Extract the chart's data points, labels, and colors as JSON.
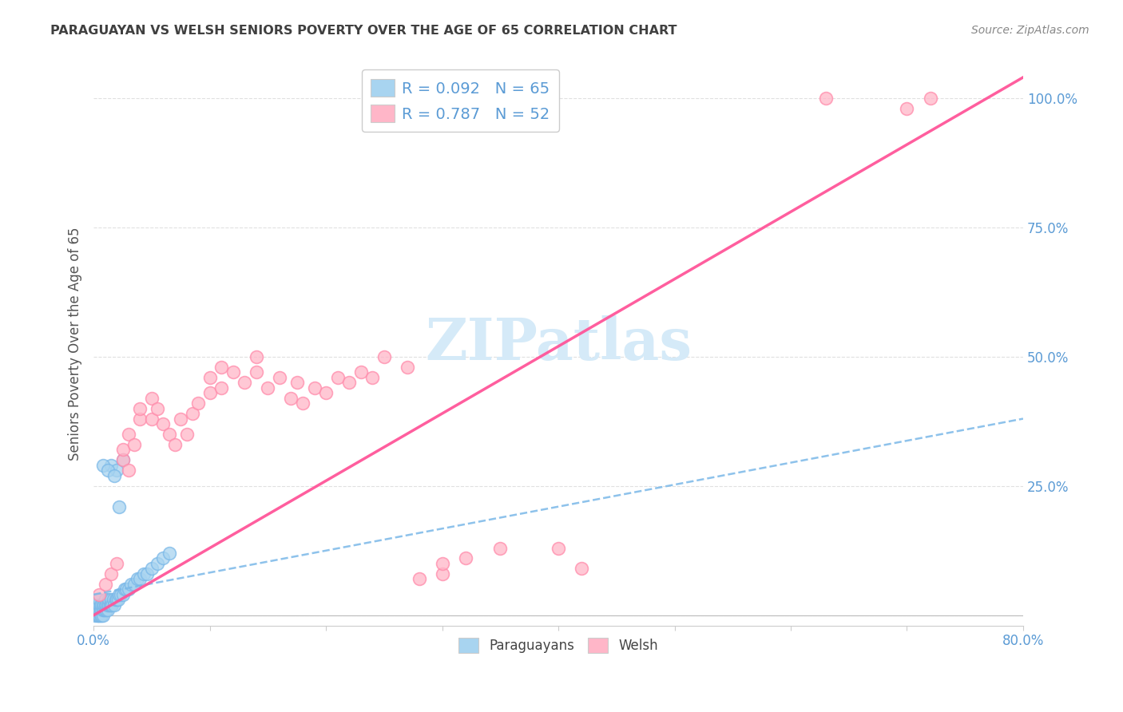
{
  "title": "PARAGUAYAN VS WELSH SENIORS POVERTY OVER THE AGE OF 65 CORRELATION CHART",
  "source": "Source: ZipAtlas.com",
  "ylabel": "Seniors Poverty Over the Age of 65",
  "paraguayan_R": 0.092,
  "paraguayan_N": 65,
  "welsh_R": 0.787,
  "welsh_N": 52,
  "paraguayan_color": "#a8d4f0",
  "paraguayan_edge_color": "#7ab8e8",
  "welsh_color": "#ffb6c8",
  "welsh_edge_color": "#ff8aaa",
  "paraguayan_line_color": "#7ab8e8",
  "welsh_line_color": "#ff5599",
  "watermark_color": "#d5eaf8",
  "background_color": "#ffffff",
  "grid_color": "#e0e0e0",
  "title_color": "#404040",
  "source_color": "#888888",
  "tick_color": "#5b9bd5",
  "ylabel_color": "#555555",
  "par_x": [
    0.001,
    0.002,
    0.002,
    0.003,
    0.003,
    0.003,
    0.004,
    0.004,
    0.004,
    0.005,
    0.005,
    0.005,
    0.005,
    0.006,
    0.006,
    0.006,
    0.007,
    0.007,
    0.007,
    0.008,
    0.008,
    0.008,
    0.009,
    0.009,
    0.01,
    0.01,
    0.01,
    0.011,
    0.011,
    0.012,
    0.012,
    0.013,
    0.013,
    0.014,
    0.015,
    0.015,
    0.016,
    0.017,
    0.018,
    0.019,
    0.02,
    0.021,
    0.022,
    0.023,
    0.025,
    0.027,
    0.028,
    0.03,
    0.032,
    0.035,
    0.038,
    0.04,
    0.043,
    0.046,
    0.05,
    0.055,
    0.06,
    0.065,
    0.015,
    0.02,
    0.025,
    0.008,
    0.012,
    0.018,
    0.022
  ],
  "par_y": [
    0.0,
    0.01,
    0.02,
    0.0,
    0.01,
    0.03,
    0.0,
    0.01,
    0.02,
    0.0,
    0.01,
    0.02,
    0.03,
    0.0,
    0.01,
    0.02,
    0.0,
    0.01,
    0.02,
    0.0,
    0.01,
    0.02,
    0.01,
    0.02,
    0.01,
    0.02,
    0.03,
    0.01,
    0.02,
    0.01,
    0.02,
    0.02,
    0.03,
    0.02,
    0.02,
    0.03,
    0.02,
    0.03,
    0.02,
    0.03,
    0.03,
    0.03,
    0.04,
    0.04,
    0.04,
    0.05,
    0.05,
    0.05,
    0.06,
    0.06,
    0.07,
    0.07,
    0.08,
    0.08,
    0.09,
    0.1,
    0.11,
    0.12,
    0.29,
    0.28,
    0.3,
    0.29,
    0.28,
    0.27,
    0.21
  ],
  "welsh_x": [
    0.005,
    0.01,
    0.015,
    0.02,
    0.025,
    0.025,
    0.03,
    0.03,
    0.035,
    0.04,
    0.04,
    0.05,
    0.05,
    0.055,
    0.06,
    0.065,
    0.07,
    0.075,
    0.08,
    0.085,
    0.09,
    0.1,
    0.1,
    0.11,
    0.11,
    0.12,
    0.13,
    0.14,
    0.14,
    0.15,
    0.16,
    0.17,
    0.175,
    0.18,
    0.19,
    0.2,
    0.21,
    0.22,
    0.23,
    0.24,
    0.25,
    0.27,
    0.28,
    0.3,
    0.3,
    0.32,
    0.35,
    0.4,
    0.42,
    0.63,
    0.7,
    0.72
  ],
  "welsh_y": [
    0.04,
    0.06,
    0.08,
    0.1,
    0.3,
    0.32,
    0.28,
    0.35,
    0.33,
    0.38,
    0.4,
    0.38,
    0.42,
    0.4,
    0.37,
    0.35,
    0.33,
    0.38,
    0.35,
    0.39,
    0.41,
    0.43,
    0.46,
    0.44,
    0.48,
    0.47,
    0.45,
    0.5,
    0.47,
    0.44,
    0.46,
    0.42,
    0.45,
    0.41,
    0.44,
    0.43,
    0.46,
    0.45,
    0.47,
    0.46,
    0.5,
    0.48,
    0.07,
    0.08,
    0.1,
    0.11,
    0.13,
    0.13,
    0.09,
    1.0,
    0.98,
    1.0
  ],
  "xlim": [
    0.0,
    0.8
  ],
  "ylim": [
    -0.02,
    1.07
  ],
  "xticks": [
    0.0,
    0.1,
    0.2,
    0.3,
    0.4,
    0.5,
    0.6,
    0.7,
    0.8
  ],
  "ytick_positions": [
    0.0,
    0.25,
    0.5,
    0.75,
    1.0
  ],
  "par_trend_x": [
    0.0,
    0.8
  ],
  "par_trend_y": [
    0.04,
    0.38
  ],
  "welsh_trend_x": [
    0.0,
    0.8
  ],
  "welsh_trend_y": [
    0.0,
    1.04
  ]
}
